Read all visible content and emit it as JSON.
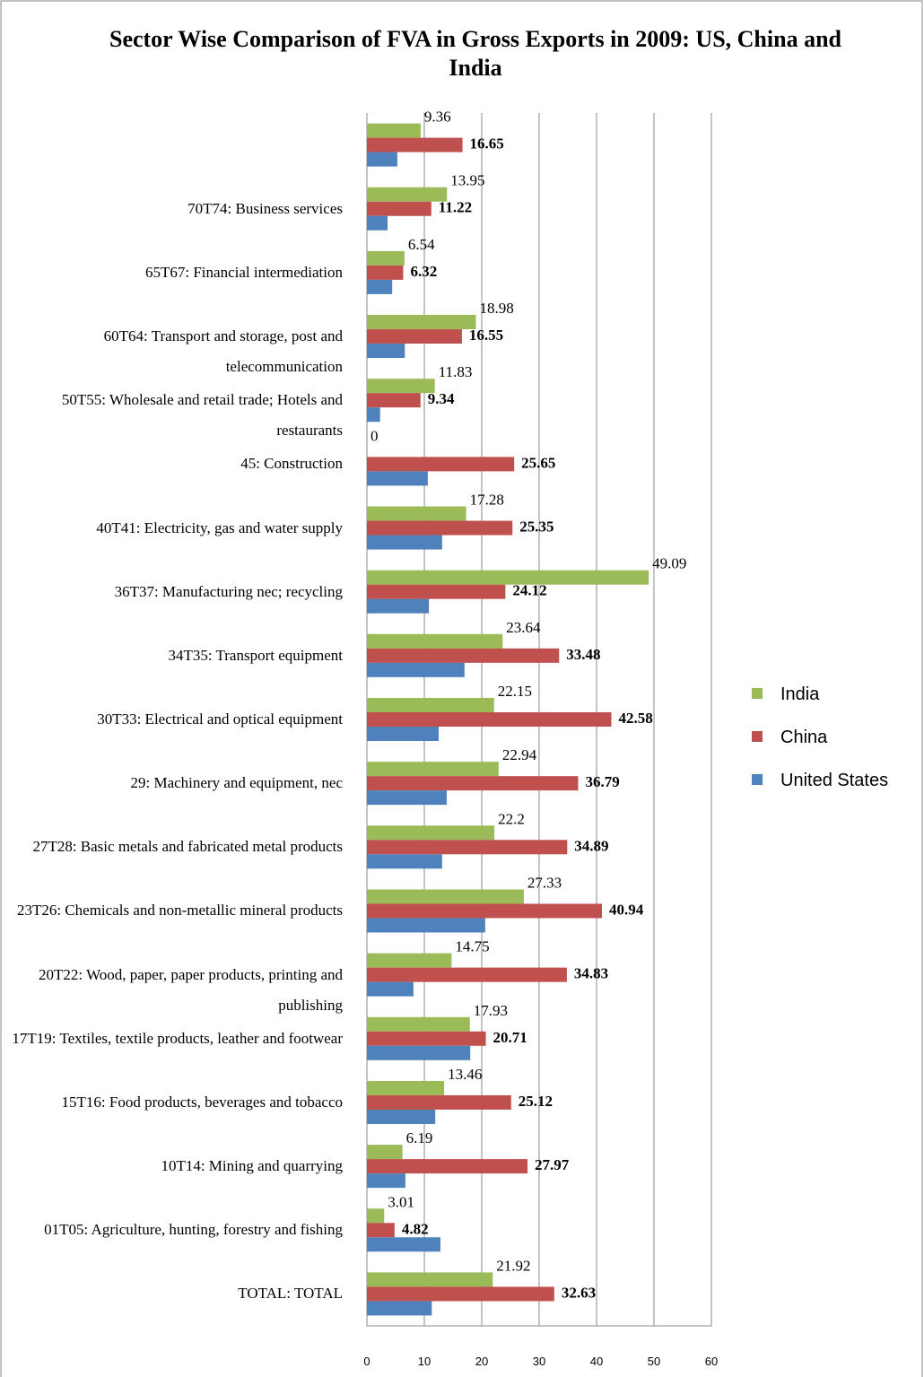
{
  "chart_data": {
    "type": "hbar",
    "title": "Sector Wise Comparison of FVA in Gross Exports in 2009: US, China and India",
    "categories": [
      "TOTAL: TOTAL",
      "01T05: Agriculture, hunting, forestry and fishing",
      "10T14: Mining and quarrying",
      "15T16: Food products, beverages and tobacco",
      "17T19: Textiles, textile products, leather and footwear",
      "20T22: Wood, paper, paper products, printing and publishing",
      "23T26: Chemicals and non-metallic mineral products",
      "27T28: Basic metals and fabricated metal products",
      "29: Machinery and equipment, nec",
      "30T33: Electrical and optical equipment",
      "34T35: Transport equipment",
      "36T37: Manufacturing nec; recycling",
      "40T41: Electricity, gas and water supply",
      "45: Construction",
      "50T55: Wholesale and retail trade; Hotels and restaurants",
      "60T64: Transport and storage, post and telecommunication",
      "65T67: Financial intermediation",
      "70T74: Business services",
      null
    ],
    "series": [
      {
        "name": "India",
        "color": "#9bbb59",
        "values": [
          21.92,
          3.01,
          6.19,
          13.46,
          17.93,
          14.75,
          27.33,
          22.2,
          22.94,
          22.15,
          23.64,
          49.09,
          17.28,
          0,
          11.83,
          18.98,
          6.54,
          13.95,
          9.36
        ]
      },
      {
        "name": "China",
        "color": "#c0504d",
        "values": [
          32.63,
          4.82,
          27.97,
          25.12,
          20.71,
          34.83,
          40.94,
          34.89,
          36.79,
          42.58,
          33.48,
          24.12,
          25.35,
          25.65,
          9.34,
          16.55,
          6.32,
          11.22,
          16.65
        ]
      },
      {
        "name": "United States",
        "color": "#4f81bd",
        "values": [
          11.3,
          12.8,
          6.7,
          11.9,
          18.0,
          8.1,
          20.6,
          13.1,
          13.9,
          12.5,
          17.0,
          10.8,
          13.1,
          10.6,
          2.3,
          6.6,
          4.4,
          3.6,
          5.3
        ]
      }
    ],
    "xlim": [
      0,
      60
    ],
    "xticks": [
      0,
      10,
      20,
      30,
      40,
      50,
      60
    ],
    "grid": true,
    "legend": "right"
  }
}
